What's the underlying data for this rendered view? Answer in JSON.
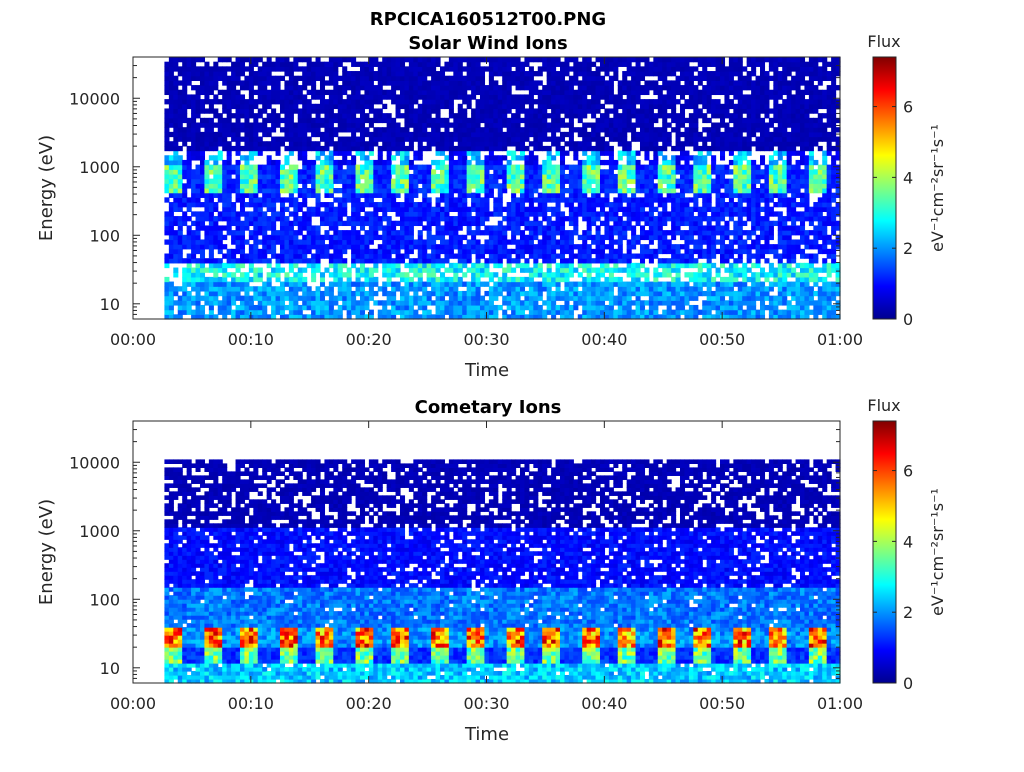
{
  "figure_title": "RPCICA160512T00.PNG",
  "colors": {
    "background": "#ffffff",
    "axis": "#262626",
    "colormap": "jet"
  },
  "chart_data": [
    {
      "type": "heatmap",
      "title": "Solar Wind Ions",
      "xlabel": "Time",
      "ylabel": "Energy (eV)",
      "x_ticks": [
        "00:00",
        "00:10",
        "00:20",
        "00:30",
        "00:40",
        "00:50",
        "01:00"
      ],
      "x_range": [
        "00:00",
        "01:00"
      ],
      "y_scale": "log",
      "y_ticks": [
        "10",
        "100",
        "1000",
        "10000"
      ],
      "y_range": [
        6,
        40000
      ],
      "data_start": "00:02:40",
      "colorbar": {
        "label": "Flux",
        "unit": "eV⁻¹cm⁻²sr⁻¹s⁻¹",
        "ticks": [
          "0",
          "2",
          "4",
          "6"
        ],
        "range": [
          0,
          7.4
        ]
      },
      "bands": [
        {
          "energy_eV": [
            6,
            20
          ],
          "flux": 2.0,
          "fill": 0.85
        },
        {
          "energy_eV": [
            20,
            40
          ],
          "flux": 2.8,
          "fill": 0.7
        },
        {
          "energy_eV": [
            40,
            400
          ],
          "flux": 1.1,
          "fill": 0.8
        },
        {
          "energy_eV": [
            400,
            1100
          ],
          "flux": 3.4,
          "fill": 0.95,
          "periodic": true,
          "period_min": 3.2
        },
        {
          "energy_eV": [
            1100,
            1800
          ],
          "flux": 2.4,
          "fill": 0.6,
          "periodic": true,
          "period_min": 3.2
        },
        {
          "energy_eV": [
            1800,
            40000
          ],
          "flux": 0.4,
          "fill": 0.85
        }
      ]
    },
    {
      "type": "heatmap",
      "title": "Cometary Ions",
      "xlabel": "Time",
      "ylabel": "Energy (eV)",
      "x_ticks": [
        "00:00",
        "00:10",
        "00:20",
        "00:30",
        "00:40",
        "00:50",
        "01:00"
      ],
      "x_range": [
        "00:00",
        "01:00"
      ],
      "y_scale": "log",
      "y_ticks": [
        "10",
        "100",
        "1000",
        "10000"
      ],
      "y_range": [
        6,
        40000
      ],
      "data_start": "00:02:40",
      "colorbar": {
        "label": "Flux",
        "unit": "eV⁻¹cm⁻²sr⁻¹s⁻¹",
        "ticks": [
          "0",
          "2",
          "4",
          "6"
        ],
        "range": [
          0,
          7.4
        ]
      },
      "bands": [
        {
          "energy_eV": [
            6,
            12
          ],
          "flux": 2.4,
          "fill": 0.92
        },
        {
          "energy_eV": [
            12,
            20
          ],
          "flux": 3.6,
          "fill": 1.0,
          "periodic": true,
          "period_min": 3.2
        },
        {
          "energy_eV": [
            20,
            40
          ],
          "flux": 5.6,
          "fill": 1.0,
          "periodic": true,
          "period_min": 3.2
        },
        {
          "energy_eV": [
            40,
            150
          ],
          "flux": 1.8,
          "fill": 0.95
        },
        {
          "energy_eV": [
            150,
            1200
          ],
          "flux": 1.0,
          "fill": 0.85
        },
        {
          "energy_eV": [
            1200,
            11000
          ],
          "flux": 0.4,
          "fill": 0.75
        }
      ]
    }
  ]
}
